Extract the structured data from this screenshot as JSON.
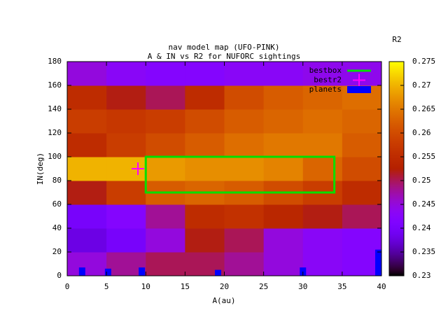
{
  "chart_data": {
    "type": "heatmap",
    "title": "nav model map (UFO-PINK)",
    "subtitle": "A & IN vs R2 for NUFORC sightings",
    "x_label": "A(au)",
    "y_label": "IN(deg)",
    "colorbar_label": "R2",
    "xbins": [
      0,
      5,
      10,
      15,
      20,
      25,
      30,
      35,
      40
    ],
    "ybins": [
      0,
      20,
      40,
      60,
      80,
      100,
      120,
      140,
      160,
      180
    ],
    "values": [
      [
        0.245,
        0.248,
        0.25,
        0.25,
        0.248,
        0.245,
        0.243,
        0.242
      ],
      [
        0.238,
        0.24,
        0.245,
        0.252,
        0.25,
        0.245,
        0.243,
        0.242
      ],
      [
        0.24,
        0.242,
        0.248,
        0.255,
        0.256,
        0.254,
        0.252,
        0.25
      ],
      [
        0.252,
        0.258,
        0.262,
        0.263,
        0.262,
        0.26,
        0.258,
        0.255
      ],
      [
        0.27,
        0.27,
        0.268,
        0.267,
        0.267,
        0.266,
        0.263,
        0.26
      ],
      [
        0.255,
        0.258,
        0.26,
        0.262,
        0.264,
        0.265,
        0.265,
        0.262
      ],
      [
        0.258,
        0.257,
        0.258,
        0.26,
        0.262,
        0.263,
        0.264,
        0.263
      ],
      [
        0.255,
        0.252,
        0.25,
        0.255,
        0.26,
        0.262,
        0.263,
        0.264
      ],
      [
        0.245,
        0.243,
        0.242,
        0.242,
        0.243,
        0.243,
        0.244,
        0.244
      ]
    ],
    "xlim": [
      0,
      40
    ],
    "ylim": [
      0,
      180
    ],
    "xticks": [
      0,
      5,
      10,
      15,
      20,
      25,
      30,
      35,
      40
    ],
    "yticks": [
      0,
      20,
      40,
      60,
      80,
      100,
      120,
      140,
      160,
      180
    ],
    "clim": [
      0.23,
      0.275
    ],
    "cticks": [
      0.23,
      0.235,
      0.24,
      0.245,
      0.25,
      0.255,
      0.26,
      0.265,
      0.27,
      0.275
    ],
    "bestbox": {
      "name": "bestbox",
      "color": "#00e000",
      "x": [
        10,
        34
      ],
      "y": [
        70,
        100
      ]
    },
    "bestr2": {
      "name": "bestr2",
      "color": "#ff00ff",
      "x": 9,
      "y": 90
    },
    "planets": {
      "name": "planets",
      "color": "#0000ff",
      "x": [
        1.9,
        5.2,
        9.5,
        19.2,
        30,
        39.6
      ],
      "values": [
        7,
        6,
        7,
        5,
        7,
        22
      ]
    }
  }
}
